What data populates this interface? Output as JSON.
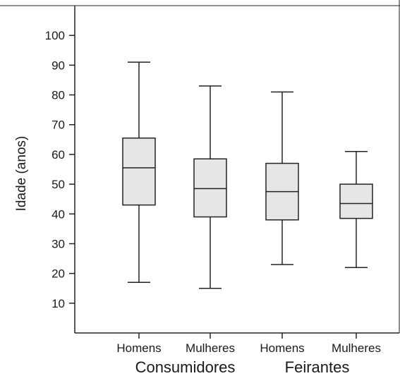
{
  "chart_data": {
    "type": "boxplot",
    "ylabel": "Idade (anos)",
    "ylim": [
      0,
      110
    ],
    "yticks": [
      10,
      20,
      30,
      40,
      50,
      60,
      70,
      80,
      90,
      100
    ],
    "grid": false,
    "categories": [
      "Homens",
      "Mulheres",
      "Homens",
      "Mulheres"
    ],
    "groups": [
      {
        "label": "Consumidores",
        "categories": [
          0,
          1
        ]
      },
      {
        "label": "Feirantes",
        "categories": [
          2,
          3
        ]
      }
    ],
    "boxes": [
      {
        "min": 17,
        "q1": 43,
        "median": 55.5,
        "q3": 65.5,
        "max": 91
      },
      {
        "min": 15,
        "q1": 39,
        "median": 48.5,
        "q3": 58.5,
        "max": 83
      },
      {
        "min": 23,
        "q1": 38,
        "median": 47.5,
        "q3": 57,
        "max": 81
      },
      {
        "min": 22,
        "q1": 38.5,
        "median": 43.5,
        "q3": 50,
        "max": 61
      }
    ],
    "colors": {
      "box_fill": "#e6e6e6",
      "stroke": "#222222"
    }
  }
}
